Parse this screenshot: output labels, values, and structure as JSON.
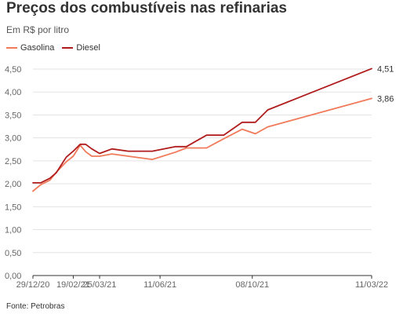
{
  "header": {
    "title": "Preços dos combustíveis nas refinarias",
    "subtitle": "Em R$ por litro"
  },
  "footer": {
    "source": "Fonte: Petrobras"
  },
  "colors": {
    "gasolina": "#f07a5a",
    "diesel": "#b01c1c",
    "grid": "#e3e3e3",
    "axis": "#333333"
  },
  "chart_data": {
    "type": "line",
    "title": "Preços dos combustíveis nas refinarias",
    "subtitle": "Em R$ por litro",
    "xlabel": "",
    "ylabel": "",
    "ylim": [
      0,
      4.5
    ],
    "y_ticks": [
      "0,00",
      "0,50",
      "1,00",
      "1,50",
      "2,00",
      "2,50",
      "3,00",
      "3,50",
      "4,00",
      "4,50"
    ],
    "x_tick_labels": [
      "29/12/20",
      "19/02/21",
      "25/03/21",
      "11/06/21",
      "08/10/21",
      "11/03/22"
    ],
    "x_tick_dates": [
      "2020-12-29",
      "2021-02-19",
      "2021-03-25",
      "2021-06-11",
      "2021-10-08",
      "2022-03-11"
    ],
    "grid": true,
    "legend_position": "top-left",
    "x": [
      "2020-12-29",
      "2021-01-08",
      "2021-01-20",
      "2021-01-28",
      "2021-02-10",
      "2021-02-19",
      "2021-02-28",
      "2021-03-07",
      "2021-03-15",
      "2021-03-25",
      "2021-04-10",
      "2021-05-01",
      "2021-06-01",
      "2021-07-01",
      "2021-07-15",
      "2021-08-10",
      "2021-09-01",
      "2021-09-25",
      "2021-10-12",
      "2021-10-28",
      "2021-11-15",
      "2021-12-15",
      "2022-01-10",
      "2022-02-05",
      "2022-03-11"
    ],
    "series": [
      {
        "name": "Gasolina",
        "color": "#f07a5a",
        "values": [
          1.84,
          1.98,
          2.08,
          2.25,
          2.48,
          2.6,
          2.84,
          2.7,
          2.6,
          2.6,
          2.65,
          2.6,
          2.53,
          2.69,
          2.78,
          2.78,
          2.98,
          3.19,
          3.09,
          3.24,
          3.86,
          null,
          null,
          null,
          null
        ]
      },
      {
        "name": "Diesel",
        "color": "#b01c1c",
        "values": [
          2.02,
          2.02,
          2.12,
          2.24,
          2.58,
          2.71,
          2.86,
          2.86,
          2.76,
          2.66,
          2.76,
          2.71,
          2.71,
          2.81,
          2.81,
          3.06,
          3.06,
          3.34,
          3.34,
          3.61,
          4.51,
          null,
          null,
          null,
          null
        ]
      }
    ],
    "end_labels": {
      "gasolina": "3,86",
      "diesel": "4,51"
    }
  }
}
